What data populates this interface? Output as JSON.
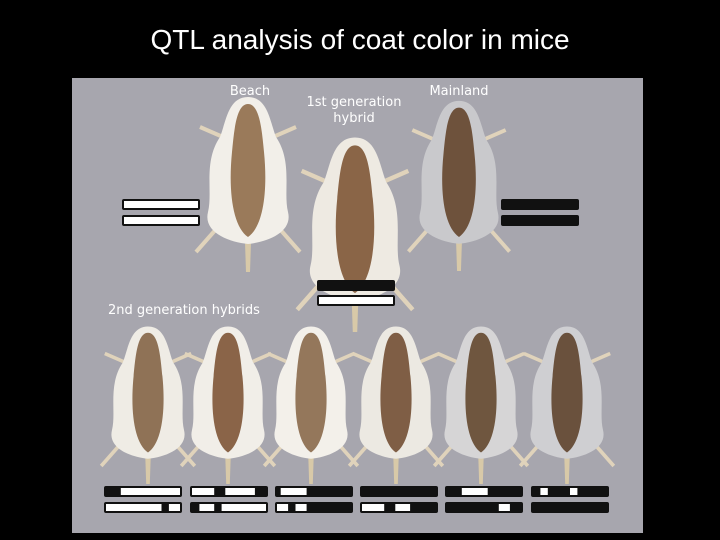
{
  "header": {
    "title": "QTL analysis of coat color in mice"
  },
  "figure": {
    "labels": {
      "beach": "Beach",
      "first_generation": [
        "1st generation",
        "hybrid"
      ],
      "mainland": "Mainland",
      "second_generation": "2nd generation hybrids"
    }
  }
}
